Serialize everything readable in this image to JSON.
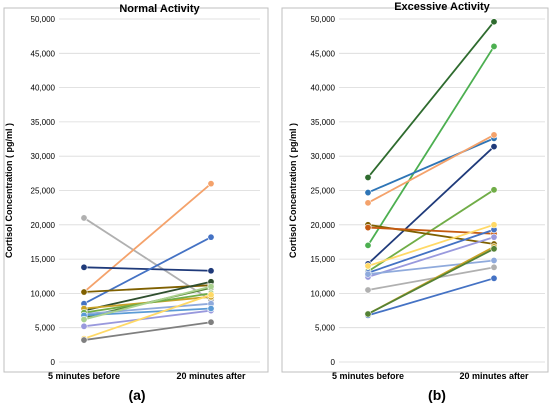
{
  "chart_data": [
    {
      "type": "line",
      "panel_label": "(a)",
      "title": "Normal Activity",
      "ylabel": "Cortisol Concentration ( pg/ml )",
      "xlabel": "",
      "categories": [
        "5 minutes before",
        "20 minutes after"
      ],
      "ylim": [
        0,
        50000
      ],
      "yticks": [
        0,
        5000,
        10000,
        15000,
        20000,
        25000,
        30000,
        35000,
        40000,
        45000,
        50000
      ],
      "ytick_labels": [
        "0",
        "5,000",
        "10,000",
        "15,000",
        "20,000",
        "25,000",
        "30,000",
        "35,000",
        "40,000",
        "45,000",
        "50,000"
      ],
      "grid": "horizontal",
      "series": [
        {
          "values": [
            21000,
            9000
          ],
          "color": "#b0b0b0"
        },
        {
          "values": [
            10200,
            26000
          ],
          "color": "#f4a26b"
        },
        {
          "values": [
            13800,
            13300
          ],
          "color": "#1f3a7a"
        },
        {
          "values": [
            8500,
            18200
          ],
          "color": "#4472c4"
        },
        {
          "values": [
            10200,
            11200
          ],
          "color": "#7f6000"
        },
        {
          "values": [
            7500,
            11700
          ],
          "color": "#2f4f2f"
        },
        {
          "values": [
            6500,
            10800
          ],
          "color": "#548235"
        },
        {
          "values": [
            7800,
            9500
          ],
          "color": "#c9a227"
        },
        {
          "values": [
            7000,
            8500
          ],
          "color": "#8faadc"
        },
        {
          "values": [
            5200,
            7500
          ],
          "color": "#9999dd"
        },
        {
          "values": [
            7200,
            10000
          ],
          "color": "#70ad47"
        },
        {
          "values": [
            6800,
            7800
          ],
          "color": "#5b9bd5"
        },
        {
          "values": [
            3400,
            9800
          ],
          "color": "#ffd966"
        },
        {
          "values": [
            3200,
            5800
          ],
          "color": "#7f7f7f"
        },
        {
          "values": [
            6200,
            11000
          ],
          "color": "#a9d18e"
        }
      ]
    },
    {
      "type": "line",
      "panel_label": "(b)",
      "title": "Excessive Activity",
      "ylabel": "Cortisol Concentration ( pg/ml )",
      "xlabel": "",
      "categories": [
        "5 minutes before",
        "20 minutes after"
      ],
      "ylim": [
        0,
        50000
      ],
      "yticks": [
        0,
        5000,
        10000,
        15000,
        20000,
        25000,
        30000,
        35000,
        40000,
        45000,
        50000
      ],
      "ytick_labels": [
        "0",
        "5,000",
        "10,000",
        "15,000",
        "20,000",
        "25,000",
        "30,000",
        "35,000",
        "40,000",
        "45,000",
        "50,000"
      ],
      "grid": "horizontal",
      "series": [
        {
          "values": [
            26900,
            49600
          ],
          "color": "#2e6b2e"
        },
        {
          "values": [
            17000,
            46000
          ],
          "color": "#4caf50"
        },
        {
          "values": [
            24700,
            32600
          ],
          "color": "#2e75b6"
        },
        {
          "values": [
            23200,
            33100
          ],
          "color": "#f4a26b"
        },
        {
          "values": [
            14300,
            31400
          ],
          "color": "#1f3a7a"
        },
        {
          "values": [
            13200,
            25100
          ],
          "color": "#70ad47"
        },
        {
          "values": [
            20000,
            17200
          ],
          "color": "#7f6000"
        },
        {
          "values": [
            19600,
            18700
          ],
          "color": "#c55a11"
        },
        {
          "values": [
            13000,
            19300
          ],
          "color": "#4472c4"
        },
        {
          "values": [
            12400,
            18200
          ],
          "color": "#9999dd"
        },
        {
          "values": [
            14000,
            20000
          ],
          "color": "#ffd966"
        },
        {
          "values": [
            10500,
            13800
          ],
          "color": "#b0b0b0"
        },
        {
          "values": [
            12800,
            14800
          ],
          "color": "#8faadc"
        },
        {
          "values": [
            7000,
            16800
          ],
          "color": "#c9a227"
        },
        {
          "values": [
            6800,
            12200
          ],
          "color": "#4472c4"
        },
        {
          "values": [
            7000,
            16500
          ],
          "color": "#548235"
        }
      ]
    }
  ]
}
